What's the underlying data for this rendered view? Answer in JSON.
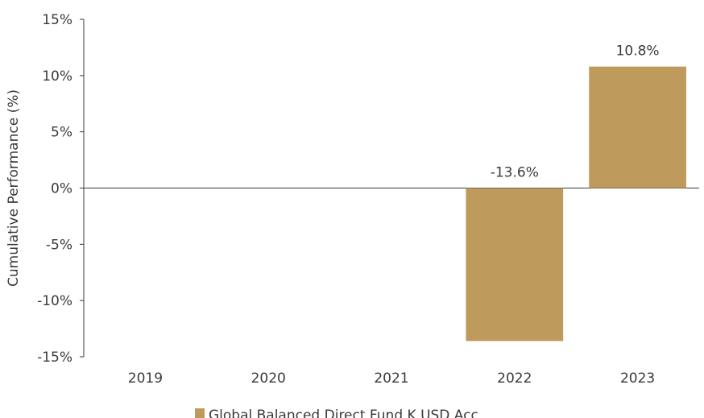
{
  "chart_data": {
    "type": "bar",
    "categories": [
      "2019",
      "2020",
      "2021",
      "2022",
      "2023"
    ],
    "series": [
      {
        "name": "Global Balanced Direct Fund K USD Acc",
        "values": [
          null,
          null,
          null,
          -13.6,
          10.8
        ],
        "data_labels": [
          "",
          "",
          "",
          "-13.6%",
          "10.8%"
        ],
        "color": "#BF9A5D"
      }
    ],
    "ylabel": "Cumulative Performance (%)",
    "xlabel": "",
    "ylim": [
      -15,
      15
    ],
    "yticks": [
      15,
      10,
      5,
      0,
      -5,
      -10,
      -15
    ],
    "ytick_labels": [
      "15%",
      "10%",
      "5%",
      "0%",
      "-5%",
      "-10%",
      "-15%"
    ],
    "grid": false,
    "legend_position": "bottom"
  }
}
